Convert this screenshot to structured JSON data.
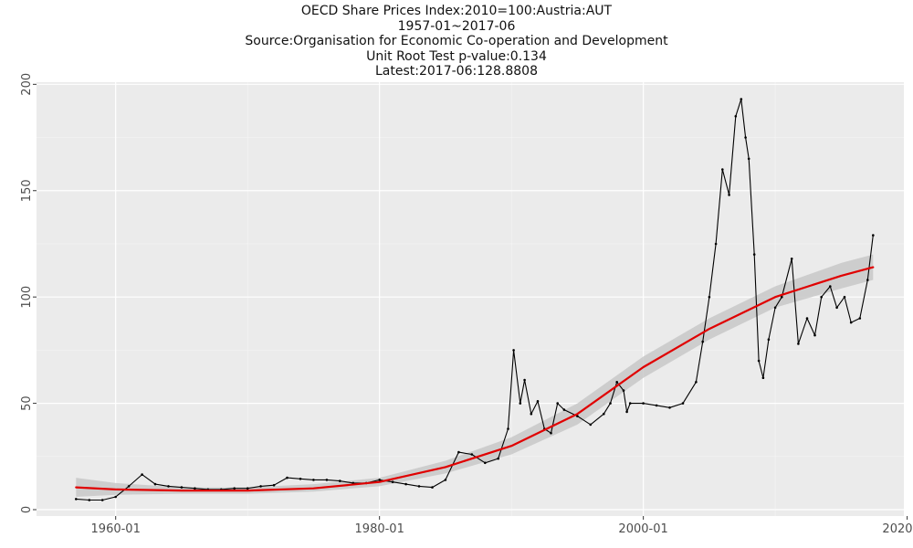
{
  "chart_data": {
    "type": "line",
    "title_lines": [
      "OECD Share Prices Index:2010=100:Austria:AUT",
      "1957-01~2017-06",
      "Source:Organisation for Economic Co-operation and Development",
      "Unit Root Test p-value:0.134",
      "Latest:2017-06:128.8808"
    ],
    "xlabel": "",
    "ylabel": "",
    "xlim": [
      "1954-01",
      "2019-10"
    ],
    "ylim": [
      -3,
      201
    ],
    "x_ticks": [
      "1960-01",
      "1980-01",
      "2000-01",
      "2020-01"
    ],
    "y_ticks": [
      0,
      50,
      100,
      150,
      200
    ],
    "grid": true,
    "colors": {
      "series": "#000000",
      "trend": "#e00000",
      "band": "#c8c8c8",
      "panel": "#ebebeb"
    },
    "series": [
      {
        "x": [
          "1957-01",
          "1958-01",
          "1959-01",
          "1960-01",
          "1961-01",
          "1962-01",
          "1963-01",
          "1964-01",
          "1965-01",
          "1966-01",
          "1967-01",
          "1968-01",
          "1969-01",
          "1970-01",
          "1971-01",
          "1972-01",
          "1973-01",
          "1974-01",
          "1975-01",
          "1976-01",
          "1977-01",
          "1978-01",
          "1979-01",
          "1980-01",
          "1981-01",
          "1982-01",
          "1983-01",
          "1984-01",
          "1985-01",
          "1986-01",
          "1987-01",
          "1988-01",
          "1989-01",
          "1989-10",
          "1990-03",
          "1990-09",
          "1991-01",
          "1991-07",
          "1992-01",
          "1992-07",
          "1993-01",
          "1993-07",
          "1994-01",
          "1995-01",
          "1996-01",
          "1997-01",
          "1997-07",
          "1998-01",
          "1998-07",
          "1998-10",
          "1999-01",
          "2000-01",
          "2001-01",
          "2002-01",
          "2003-01",
          "2004-01",
          "2004-07",
          "2005-01",
          "2005-07",
          "2006-01",
          "2006-07",
          "2007-01",
          "2007-06",
          "2007-10",
          "2008-01",
          "2008-06",
          "2008-10",
          "2009-02",
          "2009-07",
          "2010-01",
          "2010-07",
          "2011-04",
          "2011-10",
          "2012-06",
          "2013-01",
          "2013-07",
          "2014-03",
          "2014-09",
          "2015-04",
          "2015-10",
          "2016-06",
          "2017-01",
          "2017-06"
        ],
        "values": [
          5,
          4.5,
          4.5,
          6,
          11,
          16.5,
          12,
          11,
          10.5,
          10,
          9.5,
          9.5,
          10,
          10,
          11,
          11.5,
          15,
          14.5,
          14,
          14,
          13.5,
          12.5,
          12.5,
          14,
          13,
          12,
          11,
          10.5,
          14,
          27,
          26,
          22,
          24,
          38,
          75,
          50,
          61,
          45,
          51,
          38,
          36,
          50,
          47,
          44,
          40,
          45,
          50,
          60,
          56,
          46,
          50,
          50,
          49,
          48,
          50,
          60,
          79,
          100,
          125,
          160,
          148,
          185,
          193,
          175,
          165,
          120,
          70,
          62,
          80,
          95,
          100,
          118,
          78,
          90,
          82,
          100,
          105,
          95,
          100,
          88,
          90,
          108,
          129
        ]
      },
      {
        "name": "",
        "x": [
          "1957-01",
          "1960-01",
          "1965-01",
          "1970-01",
          "1975-01",
          "1980-01",
          "1985-01",
          "1990-01",
          "1995-01",
          "2000-01",
          "2005-01",
          "2010-01",
          "2015-01",
          "2017-06"
        ],
        "values": [
          10.5,
          9.5,
          9,
          9,
          10,
          13,
          20,
          30,
          45,
          67,
          85,
          100,
          110,
          114
        ],
        "band_lower": [
          6,
          7,
          7.5,
          7.5,
          8.5,
          11,
          17,
          26,
          40,
          62,
          80,
          95,
          104,
          108
        ],
        "band_upper": [
          15,
          12.5,
          10.5,
          10.5,
          12,
          15,
          23,
          34,
          50,
          72,
          90,
          105,
          116,
          120
        ]
      }
    ]
  }
}
